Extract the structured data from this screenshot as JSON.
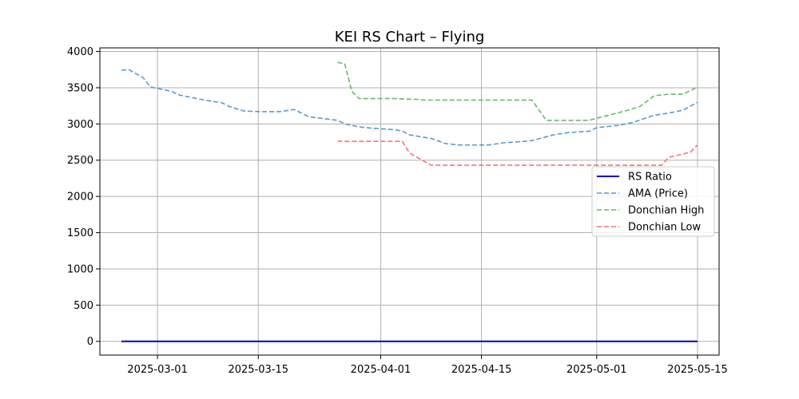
{
  "chart_data": {
    "type": "line",
    "title": "KEI RS Chart – Flying",
    "xlabel": "",
    "ylabel": "",
    "x_axis_type": "date",
    "xlim": [
      "2025-02-21",
      "2025-05-18"
    ],
    "ylim": [
      -190,
      4050
    ],
    "x_ticks": [
      "2025-03-01",
      "2025-03-15",
      "2025-04-01",
      "2025-04-15",
      "2025-05-01",
      "2025-05-15"
    ],
    "y_ticks": [
      0,
      500,
      1000,
      1500,
      2000,
      2500,
      3000,
      3500,
      4000
    ],
    "grid": true,
    "legend_position": "center-right",
    "series": [
      {
        "name": "RS Ratio",
        "color": "#0000cc",
        "style": "solid",
        "points": [
          [
            "2025-02-24",
            0
          ],
          [
            "2025-05-15",
            0
          ]
        ]
      },
      {
        "name": "AMA (Price)",
        "color": "#5b9bc9",
        "style": "dashed",
        "points": [
          [
            "2025-02-24",
            3740
          ],
          [
            "2025-02-25",
            3750
          ],
          [
            "2025-02-27",
            3640
          ],
          [
            "2025-02-28",
            3510
          ],
          [
            "2025-03-03",
            3450
          ],
          [
            "2025-03-04",
            3400
          ],
          [
            "2025-03-07",
            3340
          ],
          [
            "2025-03-10",
            3290
          ],
          [
            "2025-03-11",
            3240
          ],
          [
            "2025-03-13",
            3180
          ],
          [
            "2025-03-15",
            3170
          ],
          [
            "2025-03-18",
            3170
          ],
          [
            "2025-03-20",
            3200
          ],
          [
            "2025-03-22",
            3100
          ],
          [
            "2025-03-26",
            3050
          ],
          [
            "2025-03-27",
            3000
          ],
          [
            "2025-03-29",
            2960
          ],
          [
            "2025-03-31",
            2940
          ],
          [
            "2025-04-03",
            2920
          ],
          [
            "2025-04-04",
            2900
          ],
          [
            "2025-04-05",
            2850
          ],
          [
            "2025-04-08",
            2800
          ],
          [
            "2025-04-10",
            2730
          ],
          [
            "2025-04-12",
            2710
          ],
          [
            "2025-04-16",
            2710
          ],
          [
            "2025-04-18",
            2740
          ],
          [
            "2025-04-21",
            2760
          ],
          [
            "2025-04-22",
            2770
          ],
          [
            "2025-04-25",
            2850
          ],
          [
            "2025-04-27",
            2880
          ],
          [
            "2025-04-30",
            2900
          ],
          [
            "2025-05-01",
            2950
          ],
          [
            "2025-05-04",
            2980
          ],
          [
            "2025-05-06",
            3020
          ],
          [
            "2025-05-09",
            3120
          ],
          [
            "2025-05-11",
            3150
          ],
          [
            "2025-05-13",
            3190
          ],
          [
            "2025-05-15",
            3300
          ]
        ]
      },
      {
        "name": "Donchian High",
        "color": "#6ab86a",
        "style": "dashed",
        "points": [
          [
            "2025-03-26",
            3850
          ],
          [
            "2025-03-27",
            3830
          ],
          [
            "2025-03-28",
            3450
          ],
          [
            "2025-03-29",
            3350
          ],
          [
            "2025-04-03",
            3350
          ],
          [
            "2025-04-06",
            3340
          ],
          [
            "2025-04-07",
            3330
          ],
          [
            "2025-04-21",
            3330
          ],
          [
            "2025-04-22",
            3330
          ],
          [
            "2025-04-24",
            3050
          ],
          [
            "2025-04-30",
            3050
          ],
          [
            "2025-05-01",
            3080
          ],
          [
            "2025-05-05",
            3180
          ],
          [
            "2025-05-07",
            3240
          ],
          [
            "2025-05-09",
            3390
          ],
          [
            "2025-05-11",
            3410
          ],
          [
            "2025-05-13",
            3410
          ],
          [
            "2025-05-15",
            3510
          ]
        ]
      },
      {
        "name": "Donchian Low",
        "color": "#ff7070",
        "style": "dashed",
        "points": [
          [
            "2025-03-26",
            2760
          ],
          [
            "2025-04-02",
            2760
          ],
          [
            "2025-04-04",
            2760
          ],
          [
            "2025-04-05",
            2600
          ],
          [
            "2025-04-08",
            2430
          ],
          [
            "2025-04-20",
            2430
          ],
          [
            "2025-05-07",
            2430
          ],
          [
            "2025-05-10",
            2430
          ],
          [
            "2025-05-11",
            2540
          ],
          [
            "2025-05-14",
            2610
          ],
          [
            "2025-05-15",
            2710
          ]
        ]
      }
    ]
  }
}
